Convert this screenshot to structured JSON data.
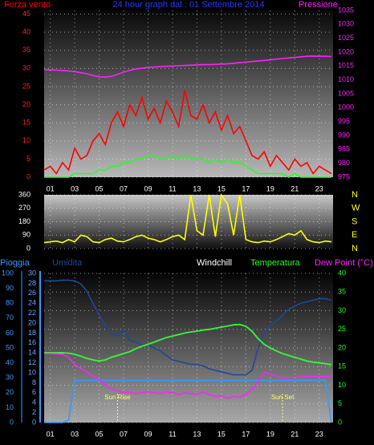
{
  "chart_data": [
    {
      "type": "line",
      "title": "24 hour graph dal : 01 Settembre 2014",
      "xlim": [
        0.5,
        24
      ],
      "xticks": [
        {
          "value": 1,
          "label": "01"
        },
        {
          "value": 3,
          "label": "03"
        },
        {
          "value": 5,
          "label": "05"
        },
        {
          "value": 7,
          "label": "07"
        },
        {
          "value": 9,
          "label": "09"
        },
        {
          "value": 11,
          "label": "11"
        },
        {
          "value": 13,
          "label": "13"
        },
        {
          "value": 15,
          "label": "15"
        },
        {
          "value": 17,
          "label": "17"
        },
        {
          "value": 19,
          "label": "19"
        },
        {
          "value": 21,
          "label": "21"
        },
        {
          "value": 23,
          "label": "23"
        }
      ],
      "ylim": [
        0,
        46
      ],
      "yticks": [
        0,
        5,
        10,
        15,
        20,
        25,
        30,
        35,
        40,
        45
      ],
      "ycolor": "#ff2020",
      "y2lim": [
        975,
        1035
      ],
      "y2ticks": [
        975,
        980,
        985,
        990,
        995,
        1000,
        1005,
        1010,
        1015,
        1020,
        1025,
        1030,
        1035
      ],
      "y2color": "#ff20ff",
      "grid": true,
      "x": [
        0.5,
        1,
        1.5,
        2,
        2.5,
        3,
        3.5,
        4,
        4.5,
        5,
        5.5,
        6,
        6.5,
        7,
        7.5,
        8,
        8.5,
        9,
        9.5,
        10,
        10.5,
        11,
        11.5,
        12,
        12.5,
        13,
        13.5,
        14,
        14.5,
        15,
        15.5,
        16,
        16.5,
        17,
        17.5,
        18,
        18.5,
        19,
        19.5,
        20,
        20.5,
        21,
        21.5,
        22,
        22.5,
        23,
        23.5,
        24
      ],
      "series": [
        {
          "name": "Forza vento",
          "color": "#ff0000",
          "values": [
            2,
            3,
            1,
            4,
            2,
            8,
            5,
            6,
            10,
            12,
            9,
            15,
            18,
            14,
            20,
            17,
            22,
            16,
            19,
            15,
            21,
            18,
            14,
            24,
            17,
            16,
            20,
            15,
            18,
            13,
            17,
            12,
            14,
            10,
            6,
            5,
            7,
            3,
            6,
            4,
            2,
            5,
            3,
            4,
            1,
            3,
            2,
            1
          ]
        },
        {
          "color": "#20ff20",
          "values": [
            0,
            0,
            0,
            0,
            0,
            1,
            1,
            1,
            1,
            2,
            2,
            3,
            3,
            4,
            4,
            5,
            5,
            6,
            6,
            5,
            5,
            6,
            5,
            6,
            5,
            5,
            5,
            4,
            5,
            4,
            5,
            4,
            4,
            3,
            2,
            1,
            1,
            1,
            1,
            1,
            0,
            1,
            0,
            0,
            0,
            0,
            0,
            0
          ]
        },
        {
          "name": "Pressione",
          "color": "#ff20ff",
          "axis": "y2",
          "values": [
            1013.7,
            1013.6,
            1013.5,
            1013.4,
            1013.2,
            1013,
            1012.6,
            1012.2,
            1011.6,
            1011.1,
            1011,
            1011.3,
            1012,
            1012.8,
            1013.4,
            1013.9,
            1014.2,
            1014.5,
            1014.6,
            1014.8,
            1014.9,
            1015,
            1015.1,
            1015.2,
            1015.3,
            1015.4,
            1015.5,
            1015.5,
            1015.6,
            1015.7,
            1015.8,
            1016,
            1016.2,
            1016.4,
            1016.6,
            1016.8,
            1017,
            1017.2,
            1017.5,
            1017.7,
            1017.9,
            1018.1,
            1018.3,
            1018.5,
            1018.6,
            1018.5,
            1018.5,
            1018.4
          ]
        }
      ]
    },
    {
      "type": "line",
      "xlim": [
        0.5,
        24
      ],
      "ylim": [
        0,
        360
      ],
      "yticks": [
        0,
        90,
        180,
        270,
        360
      ],
      "ycolor": "#ffffff",
      "y2lim": [
        0,
        360
      ],
      "y2ticks": [
        {
          "value": 0,
          "label": "N"
        },
        {
          "value": 90,
          "label": "E"
        },
        {
          "value": 180,
          "label": "S"
        },
        {
          "value": 270,
          "label": "W"
        },
        {
          "value": 360,
          "label": "N"
        }
      ],
      "y2color": "#ffff00",
      "grid": true,
      "x": [
        0.5,
        1,
        1.5,
        2,
        2.5,
        3,
        3.5,
        4,
        4.5,
        5,
        5.5,
        6,
        6.5,
        7,
        7.5,
        8,
        8.5,
        9,
        9.5,
        10,
        10.5,
        11,
        11.5,
        12,
        12.5,
        13,
        13.5,
        14,
        14.5,
        15,
        15.5,
        16,
        16.5,
        17,
        17.5,
        18,
        18.5,
        19,
        19.5,
        20,
        20.5,
        21,
        21.5,
        22,
        22.5,
        23,
        23.5,
        24
      ],
      "series": [
        {
          "color": "#ffff00",
          "values": [
            40,
            45,
            50,
            40,
            60,
            45,
            90,
            80,
            45,
            40,
            60,
            70,
            50,
            45,
            60,
            80,
            90,
            70,
            60,
            45,
            60,
            80,
            90,
            60,
            360,
            120,
            90,
            360,
            80,
            360,
            300,
            90,
            360,
            60,
            45,
            40,
            50,
            45,
            60,
            80,
            100,
            90,
            120,
            60,
            45,
            40,
            50,
            45
          ]
        }
      ]
    },
    {
      "type": "line",
      "xlim": [
        0.5,
        24
      ],
      "xticks": [
        {
          "value": 1,
          "label": "01"
        },
        {
          "value": 3,
          "label": "03"
        },
        {
          "value": 5,
          "label": "05"
        },
        {
          "value": 7,
          "label": "07"
        },
        {
          "value": 9,
          "label": "09"
        },
        {
          "value": 11,
          "label": "11"
        },
        {
          "value": 13,
          "label": "13"
        },
        {
          "value": 15,
          "label": "15"
        },
        {
          "value": 17,
          "label": "17"
        },
        {
          "value": 19,
          "label": "19"
        },
        {
          "value": 21,
          "label": "21"
        },
        {
          "value": 23,
          "label": "23"
        }
      ],
      "ylim": [
        0,
        100
      ],
      "yticks": [
        0,
        10,
        20,
        30,
        40,
        50,
        60,
        70,
        80,
        90,
        100
      ],
      "ycolor": "#3399ff",
      "y3lim": [
        0,
        30
      ],
      "y3ticks": [
        0,
        2,
        4,
        6,
        8,
        10,
        12,
        14,
        16,
        18,
        20,
        22,
        24,
        26,
        28,
        30
      ],
      "y3color": "#66aaff",
      "y2lim": [
        0,
        40
      ],
      "y2ticks": [
        0,
        5,
        10,
        15,
        20,
        25,
        30,
        35,
        40
      ],
      "y2color": "#20ff20",
      "grid": true,
      "annotations": [
        {
          "text": "Sun Rise",
          "x": 6.5
        },
        {
          "text": "Sun Set",
          "x": 20
        }
      ],
      "x": [
        0.5,
        1,
        1.5,
        2,
        2.5,
        3,
        3.5,
        4,
        4.5,
        5,
        5.5,
        6,
        6.5,
        7,
        7.5,
        8,
        8.5,
        9,
        9.5,
        10,
        10.5,
        11,
        11.5,
        12,
        12.5,
        13,
        13.5,
        14,
        14.5,
        15,
        15.5,
        16,
        16.5,
        17,
        17.5,
        18,
        18.5,
        19,
        19.5,
        20,
        20.5,
        21,
        21.5,
        22,
        22.5,
        23,
        23.5,
        24
      ],
      "series": [
        {
          "name": "Pioggia",
          "color": "#3399ff",
          "axis": "y3",
          "values": [
            0,
            0,
            0,
            0,
            0.5,
            8.5,
            8.5,
            8.5,
            8.5,
            8.5,
            8.5,
            8.5,
            8.5,
            8.5,
            8.5,
            8.5,
            8.5,
            8.5,
            8.5,
            8.5,
            8.5,
            8.5,
            8.5,
            8.5,
            8.5,
            8.5,
            8.5,
            8.5,
            8.5,
            8.5,
            8.5,
            8.5,
            8.5,
            8.5,
            8.5,
            8.5,
            8.5,
            8.5,
            8.5,
            8.5,
            8.5,
            8.5,
            8.5,
            8.5,
            8.5,
            8.5,
            8.5,
            0
          ]
        },
        {
          "name": "Umidita",
          "color": "#1a4a9a",
          "values": [
            95,
            95,
            95,
            95.5,
            95.5,
            95,
            93,
            88,
            80,
            72,
            65,
            60,
            58,
            62,
            55,
            54,
            52,
            52,
            50,
            48,
            45,
            42,
            41,
            40,
            39,
            39,
            38,
            36,
            35,
            34,
            33,
            32,
            32,
            32,
            35,
            50,
            60,
            65,
            68,
            72,
            76,
            78,
            80,
            81,
            82,
            83,
            83,
            82
          ]
        },
        {
          "name": "Windchill",
          "color": "#ffffff",
          "axis": "y2",
          "values": [
            18.7,
            18.7,
            18.7,
            18.7,
            18.6,
            18.3,
            17.8,
            17.2,
            16.8,
            16.5,
            16.8,
            17.5,
            18,
            18.5,
            19,
            19.8,
            20.5,
            21,
            21.6,
            22.2,
            22.8,
            23.2,
            23.6,
            24,
            24.3,
            24.5,
            24.8,
            25,
            25.3,
            25.6,
            25.9,
            26.2,
            26.3,
            25.8,
            24.5,
            22.5,
            21,
            20,
            19.2,
            18.5,
            18,
            17.5,
            17,
            16.5,
            16.2,
            16,
            15.8,
            15.5
          ]
        },
        {
          "name": "Temperatura",
          "color": "#20ff20",
          "axis": "y2",
          "values": [
            18.7,
            18.7,
            18.7,
            18.7,
            18.6,
            18.3,
            17.8,
            17.2,
            16.8,
            16.5,
            16.8,
            17.5,
            18,
            18.5,
            19,
            19.8,
            20.5,
            21,
            21.6,
            22.2,
            22.8,
            23.2,
            23.6,
            24,
            24.3,
            24.5,
            24.8,
            25,
            25.3,
            25.6,
            25.9,
            26.2,
            26.3,
            25.8,
            24.5,
            22.5,
            21,
            20,
            19.2,
            18.5,
            18,
            17.5,
            17,
            16.5,
            16.2,
            16,
            15.8,
            15.5
          ]
        },
        {
          "name": "Dew Point (°C)",
          "color": "#ff20ff",
          "axis": "y2",
          "values": [
            18.5,
            18.5,
            18.4,
            18.3,
            17.5,
            15.5,
            14.5,
            13.5,
            12.5,
            11.5,
            10,
            9,
            8.5,
            8,
            8.2,
            7.8,
            8,
            8.3,
            8,
            7.8,
            8.2,
            8,
            7.5,
            8,
            7.8,
            7.5,
            8.2,
            7.5,
            7,
            7.2,
            6.5,
            7,
            6.8,
            7.5,
            9,
            11,
            13.5,
            13,
            12.5,
            12,
            12,
            12.2,
            12.2,
            12.3,
            12.3,
            12.3,
            12.3,
            12.2
          ]
        }
      ]
    }
  ]
}
